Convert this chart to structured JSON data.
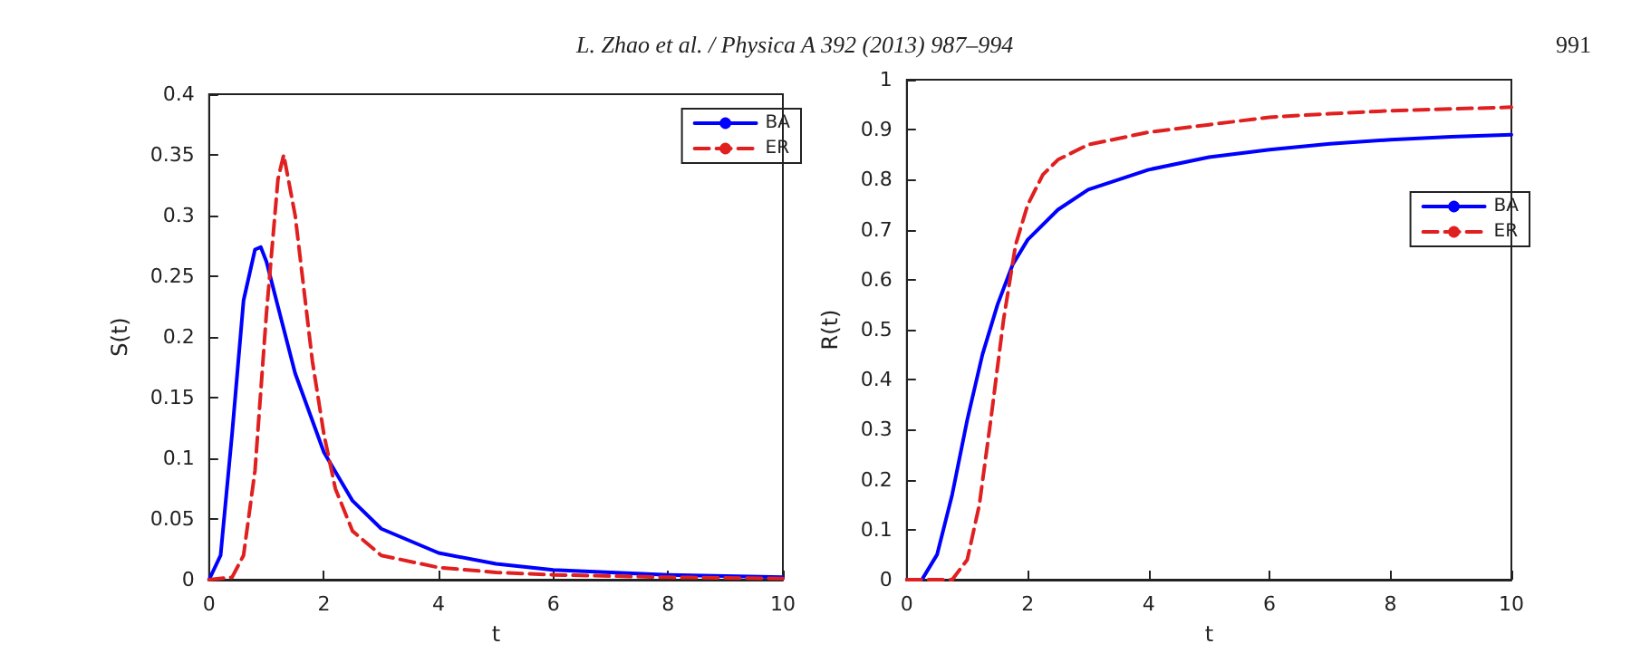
{
  "chart_data": [
    {
      "type": "line",
      "xlabel": "t",
      "ylabel": "S(t)",
      "annotations": [
        "L. Zhao et al. / Physica A 392 (2013) 987–994",
        "991"
      ],
      "xlim": [
        0,
        10
      ],
      "xticks": [
        0,
        2,
        4,
        6,
        8,
        10
      ],
      "ylim": [
        0,
        0.4
      ],
      "yticks": [
        0,
        0.05,
        0.1,
        0.15,
        0.2,
        0.25,
        0.3,
        0.35,
        0.4
      ],
      "grid": false,
      "legend": "top right",
      "series": [
        {
          "name": "BA",
          "color": "#0000ff",
          "line_style": "solid",
          "x": [
            0,
            0.2,
            0.4,
            0.6,
            0.8,
            0.9,
            1.0,
            1.2,
            1.5,
            2,
            2.5,
            3,
            4,
            5,
            6,
            8,
            10
          ],
          "values": [
            0,
            0.02,
            0.12,
            0.23,
            0.272,
            0.274,
            0.262,
            0.225,
            0.17,
            0.105,
            0.065,
            0.042,
            0.022,
            0.013,
            0.008,
            0.004,
            0.002
          ]
        },
        {
          "name": "ER",
          "color": "#e02020",
          "line_style": "dashed",
          "x": [
            0,
            0.4,
            0.6,
            0.8,
            1.0,
            1.2,
            1.3,
            1.5,
            1.8,
            2,
            2.2,
            2.5,
            3,
            4,
            5,
            6,
            8,
            10
          ],
          "values": [
            0,
            0.002,
            0.02,
            0.09,
            0.22,
            0.33,
            0.35,
            0.3,
            0.18,
            0.12,
            0.075,
            0.04,
            0.02,
            0.01,
            0.006,
            0.004,
            0.002,
            0.001
          ]
        }
      ]
    },
    {
      "type": "line",
      "xlabel": "t",
      "ylabel": "R(t)",
      "xlim": [
        0,
        10
      ],
      "xticks": [
        0,
        2,
        4,
        6,
        8,
        10
      ],
      "ylim": [
        0,
        1
      ],
      "yticks": [
        0,
        0.1,
        0.2,
        0.3,
        0.4,
        0.5,
        0.6,
        0.7,
        0.8,
        0.9,
        1
      ],
      "grid": false,
      "legend": "right",
      "series": [
        {
          "name": "BA",
          "color": "#0000ff",
          "line_style": "solid",
          "x": [
            0,
            0.25,
            0.5,
            0.75,
            1,
            1.25,
            1.5,
            1.75,
            2,
            2.5,
            3,
            4,
            5,
            6,
            7,
            8,
            9,
            10
          ],
          "values": [
            0,
            0,
            0.05,
            0.17,
            0.32,
            0.45,
            0.55,
            0.63,
            0.68,
            0.74,
            0.78,
            0.82,
            0.845,
            0.86,
            0.872,
            0.88,
            0.886,
            0.89
          ]
        },
        {
          "name": "ER",
          "color": "#e02020",
          "line_style": "dashed",
          "x": [
            0,
            0.75,
            1,
            1.2,
            1.4,
            1.6,
            1.8,
            2,
            2.25,
            2.5,
            3,
            4,
            5,
            6,
            7,
            8,
            10
          ],
          "values": [
            0,
            0,
            0.04,
            0.15,
            0.33,
            0.52,
            0.67,
            0.75,
            0.81,
            0.84,
            0.87,
            0.895,
            0.91,
            0.925,
            0.932,
            0.938,
            0.945
          ]
        }
      ]
    }
  ]
}
